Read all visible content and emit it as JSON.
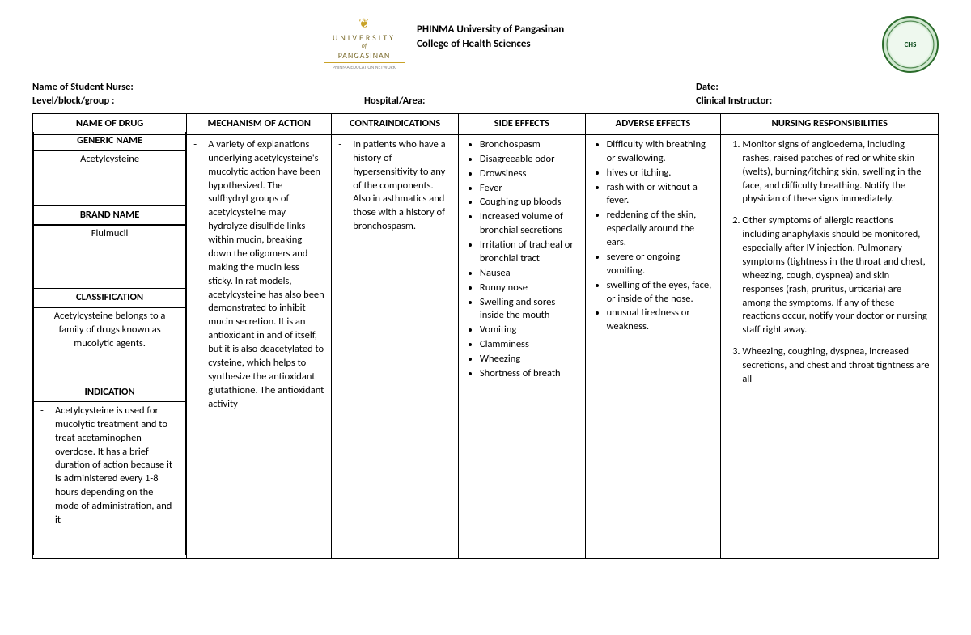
{
  "header": {
    "logo_university": "UNIVERSITY",
    "logo_of": "of",
    "logo_pangasinan": "PANGASINAN",
    "logo_tag": "PHINMA EDUCATION NETWORK",
    "title_line1": "PHINMA University of Pangasinan",
    "title_line2": "College of Health Sciences",
    "seal_text": "CHS"
  },
  "info": {
    "row1_left_label": "Name of Student Nurse:",
    "row1_right_label": "Date:",
    "row2_left_label": "Level/block/group :",
    "row2_mid_label": "Hospital/Area:",
    "row2_right_label": "Clinical Instructor:"
  },
  "table_headers": {
    "c1": "NAME OF DRUG",
    "c2": "MECHANISM OF ACTION",
    "c3": "CONTRAINDICATIONS",
    "c4": "SIDE EFFECTS",
    "c5": "ADVERSE EFFECTS",
    "c6": "NURSING RESPONSIBILITIES"
  },
  "col1": {
    "generic_head": "GENERIC NAME",
    "generic_body": "Acetylcysteine",
    "brand_head": "BRAND NAME",
    "brand_body": "Fluimucil",
    "class_head": "CLASSIFICATION",
    "class_body": "Acetylcysteine belongs to a family of drugs known as mucolytic agents.",
    "indic_head": "INDICATION",
    "indic_body": "Acetylcysteine is used for mucolytic treatment and to treat acetaminophen overdose. It has a brief duration of action because it is administered every 1-8 hours depending on the mode of administration, and it"
  },
  "col2": {
    "text": "A variety of explanations underlying acetylcysteine's mucolytic action have been hypothesized. The sulfhydryl groups of acetylcysteine may hydrolyze disulfide links within mucin, breaking down the oligomers and making the mucin less sticky. In rat models, acetylcysteine has also been demonstrated to inhibit mucin secretion. It is an antioxidant in and of itself, but it is also deacetylated to cysteine, which helps to synthesize the antioxidant glutathione. The antioxidant activity"
  },
  "col3": {
    "text": "In patients who have a history of hypersensitivity to any of the components. Also in asthmatics and those with a history of bronchospasm."
  },
  "col4": {
    "items": [
      "Bronchospasm",
      "Disagreeable odor",
      "Drowsiness",
      "Fever",
      "Coughing up bloods",
      "Increased volume of bronchial secretions",
      "Irritation of tracheal or bronchial tract",
      "Nausea",
      "Runny nose",
      "Swelling and sores inside the mouth",
      "Vomiting",
      "Clamminess",
      "Wheezing",
      "Shortness of breath"
    ]
  },
  "col5": {
    "items": [
      "Difficulty with breathing or swallowing.",
      "hives or itching.",
      "rash with or without a fever.",
      "reddening of the skin, especially around the ears.",
      "severe or ongoing vomiting.",
      "swelling of the eyes, face, or inside of the nose.",
      "unusual tiredness or weakness."
    ]
  },
  "col6": {
    "items": [
      "Monitor signs of angioedema, including rashes, raised patches of red or white skin (welts), burning/itching skin, swelling in the face, and difficulty breathing. Notify the physician of these signs immediately.",
      "Other symptoms of allergic reactions including anaphylaxis should be monitored, especially after IV injection. Pulmonary symptoms (tightness in the throat and chest, wheezing, cough, dyspnea) and skin responses (rash, pruritus, urticaria) are among the symptoms. If any of these reactions occur, notify your doctor or nursing staff right away.",
      "Wheezing, coughing, dyspnea, increased secretions, and chest and throat tightness are all"
    ]
  }
}
